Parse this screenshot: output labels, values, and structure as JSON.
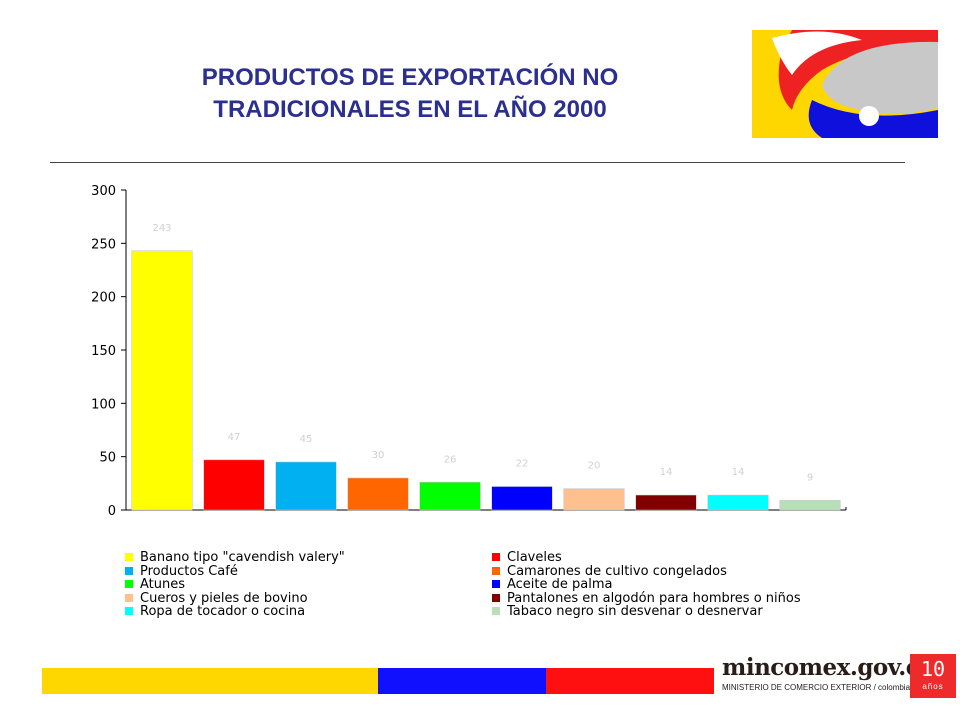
{
  "header": {
    "title_line1": "PRODUCTOS DE EXPORTACIÓN NO",
    "title_line2": "TRADICIONALES EN EL AÑO 2000"
  },
  "footer": {
    "brand_name": "mincomex.gov.co",
    "brand_sub": "MINISTERIO DE COMERCIO EXTERIOR / colombia",
    "badge_number": "10",
    "badge_word": "años",
    "stripe_colors": [
      "#ffd700",
      "#1010ff",
      "#ff1010"
    ]
  },
  "logo": {
    "colors": [
      "#ffd700",
      "#ee2222",
      "#1010dd",
      "#c8c8c8"
    ]
  },
  "chart_data": {
    "type": "bar",
    "ylim": [
      0,
      300
    ],
    "yticks": [
      0,
      50,
      100,
      150,
      200,
      250,
      300
    ],
    "categories": [
      "Banano tipo  \"cavendish valery\"",
      "Claveles",
      "Productos Café",
      "Camarones de cultivo congelados",
      "Atunes",
      "Aceite de palma",
      "Cueros y pieles de bovino",
      "Pantalones en algodón para hombres o niños",
      "Ropa de tocador o cocina",
      "Tabaco negro sin desvenar o desnervar"
    ],
    "values": [
      243,
      47,
      45,
      30,
      26,
      22,
      20,
      14,
      14,
      9
    ],
    "colors": [
      "#ffff00",
      "#ff0000",
      "#00b0f0",
      "#ff6600",
      "#00ff00",
      "#0000ff",
      "#ffc090",
      "#800000",
      "#00ffff",
      "#b8e0b8"
    ],
    "grid": false,
    "legend_placement": "bottom"
  }
}
